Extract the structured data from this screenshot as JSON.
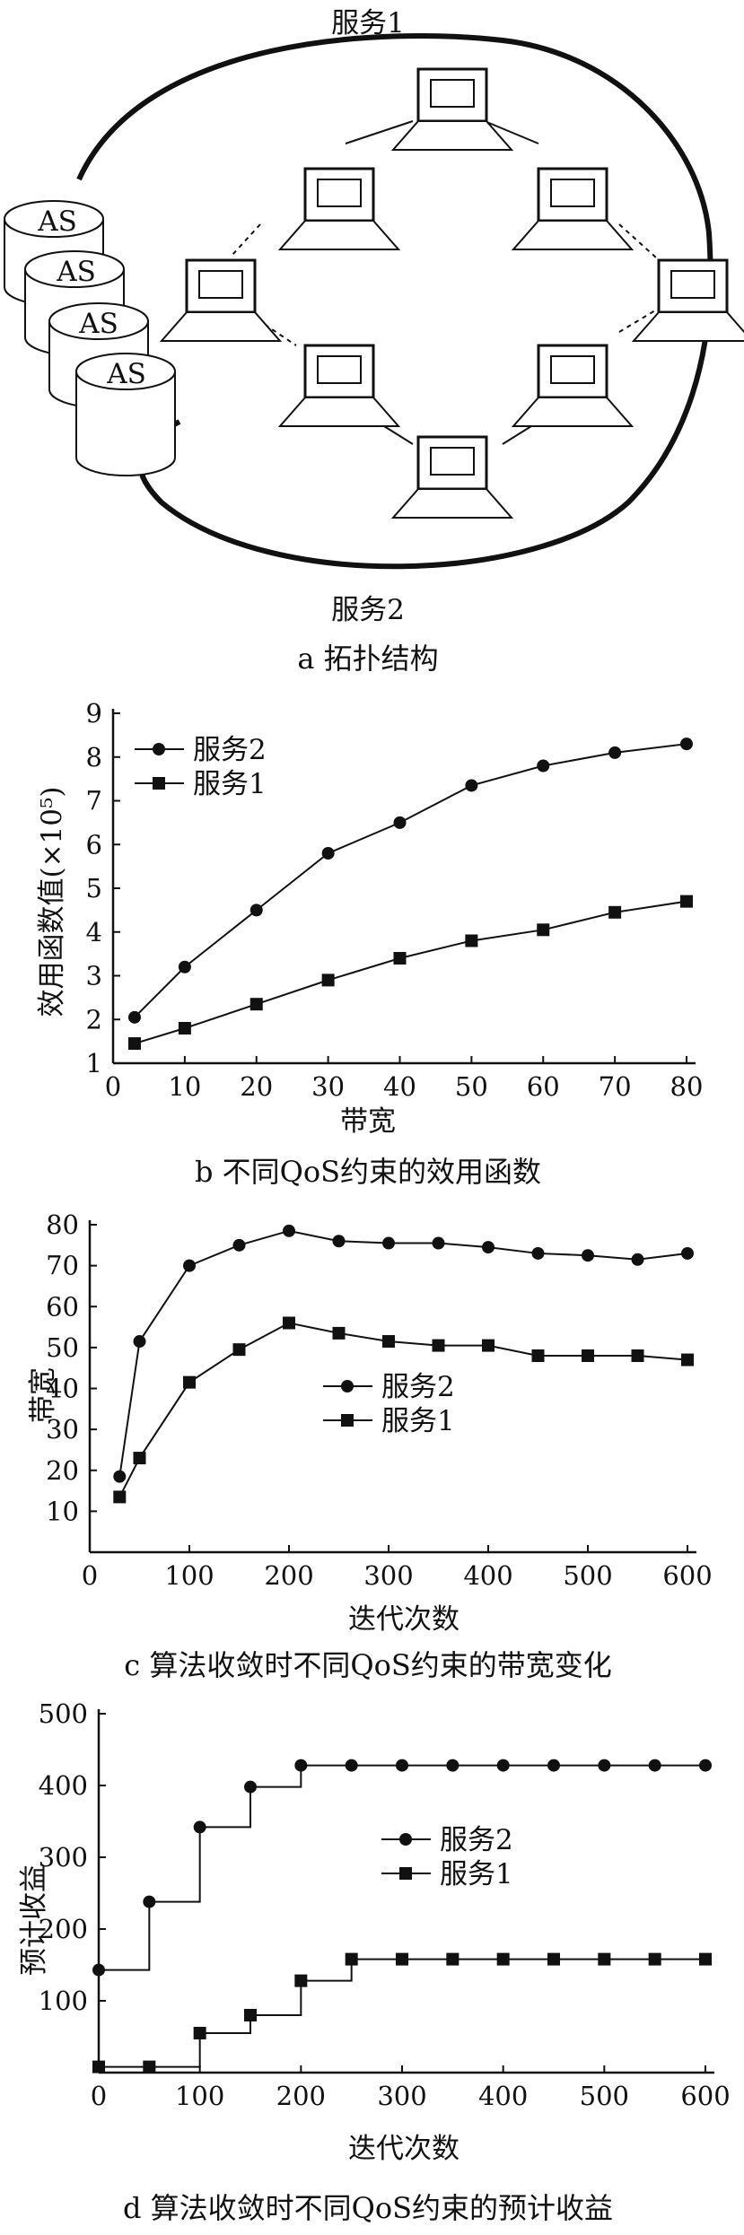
{
  "panel_a": {
    "caption": "a 拓扑结构",
    "top_label": "服务1",
    "bottom_label": "服务2",
    "as_labels": [
      "AS",
      "AS",
      "AS",
      "AS"
    ]
  },
  "chart_data": [
    {
      "id": "b",
      "type": "line",
      "caption": "b 不同QoS约束的效用函数",
      "xlabel": "带宽",
      "ylabel": "效用函数值(×10⁵)",
      "x": [
        3,
        10,
        20,
        30,
        40,
        50,
        60,
        70,
        80
      ],
      "xticks": [
        "0",
        "10",
        "20",
        "30",
        "40",
        "50",
        "60",
        "70",
        "80"
      ],
      "yticks": [
        "1",
        "2",
        "3",
        "4",
        "5",
        "6",
        "7",
        "8",
        "9"
      ],
      "xlim": [
        0,
        80
      ],
      "ylim": [
        1,
        9
      ],
      "step": false,
      "legend_position": "top-left",
      "series": [
        {
          "name": "服务2",
          "marker": "circle",
          "values": [
            2.05,
            3.2,
            4.5,
            5.8,
            6.5,
            7.35,
            7.8,
            8.1,
            8.3
          ]
        },
        {
          "name": "服务1",
          "marker": "square",
          "values": [
            1.45,
            1.8,
            2.35,
            2.9,
            3.4,
            3.8,
            4.05,
            4.45,
            4.7
          ]
        }
      ]
    },
    {
      "id": "c",
      "type": "line",
      "caption": "c 算法收敛时不同QoS约束的带宽变化",
      "xlabel": "迭代次数",
      "ylabel": "带宽",
      "x": [
        30,
        50,
        100,
        150,
        200,
        250,
        300,
        350,
        400,
        450,
        500,
        550,
        600
      ],
      "xticks": [
        "0",
        "100",
        "200",
        "300",
        "400",
        "500",
        "600"
      ],
      "yticks": [
        "10",
        "20",
        "30",
        "40",
        "50",
        "60",
        "70",
        "80"
      ],
      "xlim": [
        0,
        600
      ],
      "ylim": [
        0,
        80
      ],
      "step": false,
      "legend_position": "center",
      "series": [
        {
          "name": "服务2",
          "marker": "circle",
          "values": [
            18.5,
            51.5,
            70,
            75,
            78.5,
            76,
            75.5,
            75.5,
            74.5,
            73,
            72.5,
            71.5,
            73
          ]
        },
        {
          "name": "服务1",
          "marker": "square",
          "values": [
            13.5,
            23,
            41.5,
            49.5,
            56,
            53.5,
            51.5,
            50.5,
            50.5,
            48,
            48,
            48,
            47
          ]
        }
      ]
    },
    {
      "id": "d",
      "type": "line",
      "caption": "d 算法收敛时不同QoS约束的预计收益",
      "xlabel": "迭代次数",
      "ylabel": "预计收益",
      "x": [
        0,
        50,
        100,
        150,
        200,
        250,
        300,
        350,
        400,
        450,
        500,
        550,
        600
      ],
      "xticks": [
        "0",
        "100",
        "200",
        "300",
        "400",
        "500",
        "600"
      ],
      "yticks": [
        "100",
        "200",
        "300",
        "400",
        "500"
      ],
      "xlim": [
        0,
        600
      ],
      "ylim": [
        0,
        500
      ],
      "step": true,
      "legend_position": "center",
      "series": [
        {
          "name": "服务2",
          "marker": "circle",
          "values": [
            143,
            238,
            342,
            398,
            428,
            428,
            428,
            428,
            428,
            428,
            428,
            428,
            428
          ]
        },
        {
          "name": "服务1",
          "marker": "square",
          "values": [
            8,
            8,
            55,
            80,
            128,
            158,
            158,
            158,
            158,
            158,
            158,
            158,
            158
          ]
        }
      ]
    }
  ]
}
